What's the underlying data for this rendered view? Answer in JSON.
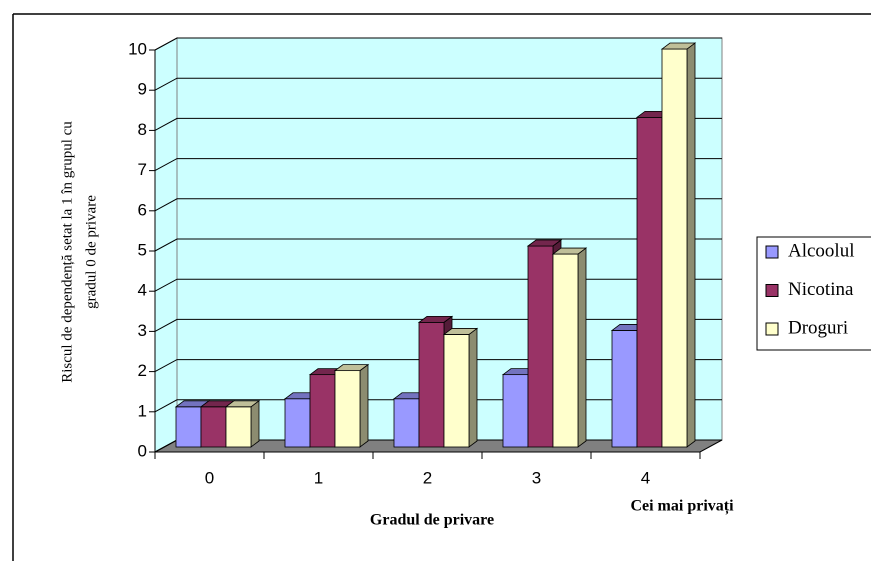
{
  "chart_data": {
    "type": "bar3d",
    "ylabel": [
      "Riscul de dependență setat la 1 în grupul cu",
      "gradul 0 de privare"
    ],
    "xlabel": "Gradul de privare",
    "annotation": "Cei mai privați",
    "categories": [
      "0",
      "1",
      "2",
      "3",
      "4"
    ],
    "series": [
      {
        "name": "Alcoolul",
        "color": "#9999ff",
        "values": [
          1,
          1.2,
          1.2,
          1.8,
          2.9
        ]
      },
      {
        "name": "Nicotina",
        "color": "#993366",
        "values": [
          1,
          1.8,
          3.1,
          5.0,
          8.2
        ]
      },
      {
        "name": "Droguri",
        "color": "#ffffcc",
        "values": [
          1,
          1.9,
          2.8,
          4.8,
          9.9
        ]
      }
    ],
    "ylim": [
      0,
      10
    ],
    "yticks": [
      0,
      1,
      2,
      3,
      4,
      5,
      6,
      7,
      8,
      9,
      10
    ],
    "grid": true,
    "legend": "right"
  }
}
